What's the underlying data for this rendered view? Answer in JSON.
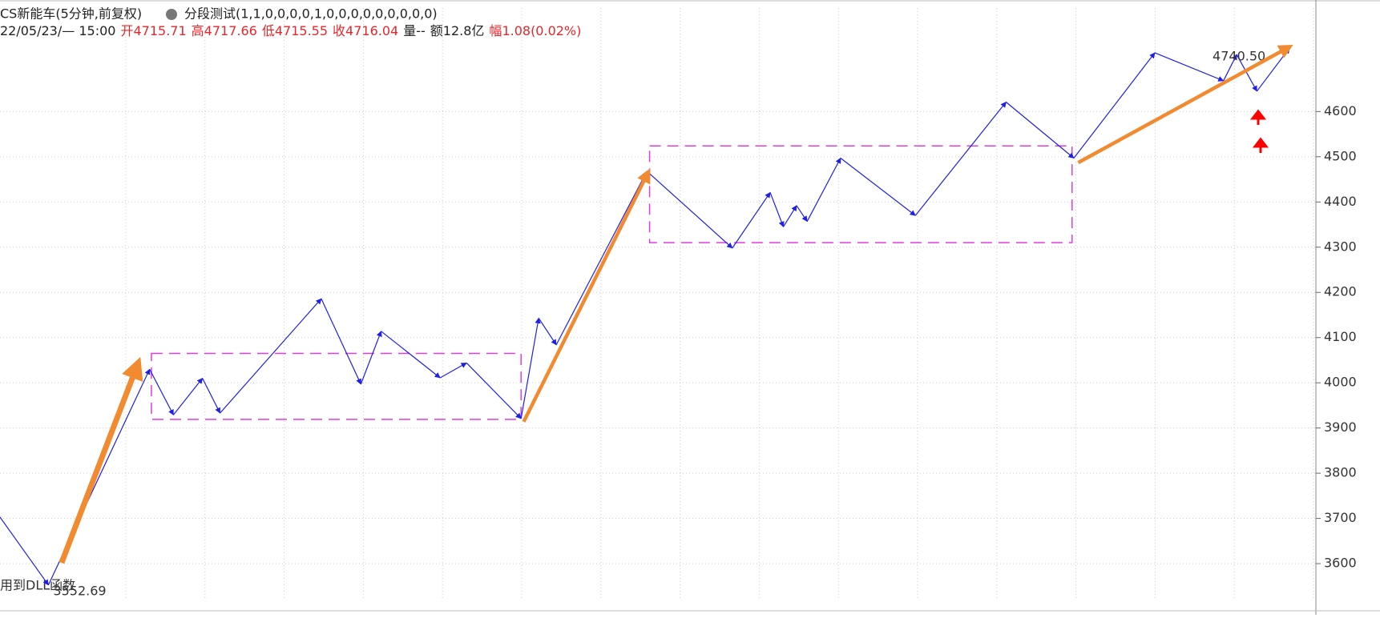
{
  "chart_data": {
    "type": "line",
    "title": "CS新能车(5分钟,前复权)",
    "indicator": "分段测试(1,1,0,0,0,0,1,0,0,0,0,0,0,0,0,0)",
    "datetime": "22/05/23/— 15:00",
    "info": [
      {
        "label": "开",
        "value": "4715.71"
      },
      {
        "label": "高",
        "value": "4717.66"
      },
      {
        "label": "低",
        "value": "4715.55"
      },
      {
        "label": "收",
        "value": "4716.04"
      },
      {
        "label": "量",
        "value": "--"
      },
      {
        "label": "额",
        "value": "12.8亿"
      },
      {
        "label": "幅",
        "value": "1.08(0.02%)"
      }
    ],
    "bottom_note": "用到DLL函数",
    "xlim": [
      0,
      1495
    ],
    "ylim": [
      3524,
      4837
    ],
    "yticks": [
      3600,
      3700,
      3800,
      3900,
      4000,
      4100,
      4200,
      4300,
      4400,
      4500,
      4600
    ],
    "grid": true,
    "series": [
      {
        "color": "#1f1fe6",
        "x": [
          0,
          55,
          170,
          197,
          230,
          250,
          365,
          410,
          433,
          500,
          530,
          592,
          612,
          632,
          735,
          832,
          875,
          890,
          905,
          917,
          955,
          1040,
          1143,
          1220,
          1312,
          1390,
          1405,
          1428,
          1465
        ],
        "values": [
          3703,
          3552.69,
          4030,
          3929,
          4010,
          3933,
          4186,
          3997,
          4114,
          4011,
          4044,
          3921,
          4143,
          4084,
          4468,
          4298,
          4421,
          4345,
          4392,
          4357,
          4497,
          4370,
          4621,
          4497,
          4730,
          4668,
          4726,
          4645,
          4740.5
        ],
        "value_labels": [
          null,
          "3552.69",
          null,
          null,
          null,
          null,
          null,
          null,
          null,
          null,
          null,
          null,
          null,
          null,
          null,
          null,
          null,
          null,
          null,
          null,
          null,
          null,
          null,
          null,
          null,
          null,
          null,
          null,
          "4740.50"
        ]
      }
    ],
    "boxes": [
      {
        "color": "#e03ce0",
        "x": [
          172,
          592
        ],
        "values": [
          3919,
          4065
        ]
      },
      {
        "color": "#e03ce0",
        "x": [
          738,
          1218
        ],
        "values": [
          4310,
          4524
        ]
      }
    ],
    "trend_arrows": [
      {
        "color": "#f28a30",
        "x": [
          70,
          155
        ],
        "values": [
          3602,
          4034
        ]
      },
      {
        "color": "#f28a30",
        "x": [
          595,
          735
        ],
        "values": [
          3914,
          4460
        ]
      },
      {
        "color": "#f28a30",
        "x": [
          1225,
          1462
        ],
        "values": [
          4487,
          4740
        ]
      }
    ]
  }
}
